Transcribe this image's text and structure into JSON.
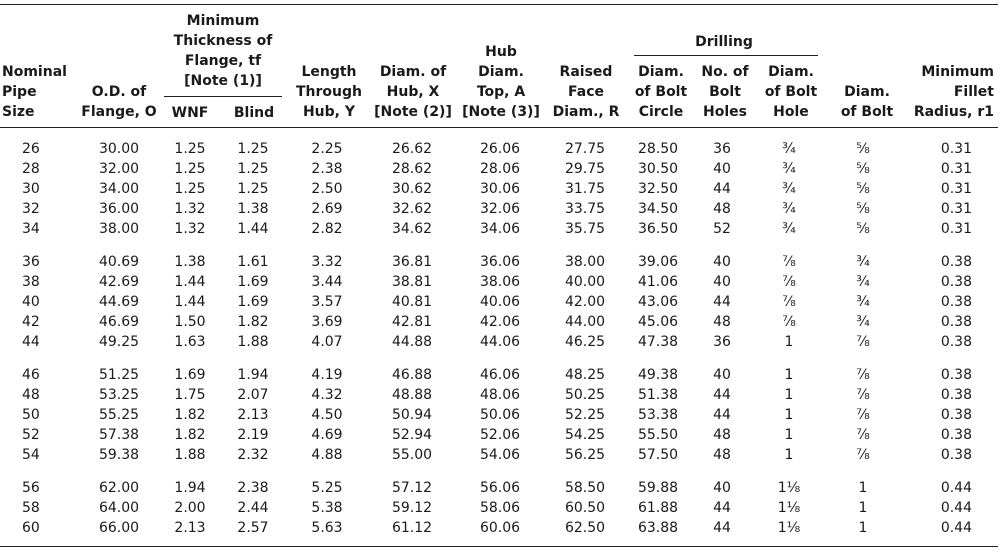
{
  "headers": {
    "nominal_pipe_size": [
      "Nominal",
      "Pipe",
      "Size"
    ],
    "od_flange": [
      "O.D. of",
      "Flange, O"
    ],
    "min_thickness_group": [
      "Minimum",
      "Thickness of",
      "Flange, tf",
      "[Note (1)]"
    ],
    "wnf": "WNF",
    "blind": "Blind",
    "length_through_hub": [
      "Length",
      "Through",
      "Hub, Y"
    ],
    "diam_hub": [
      "Diam. of",
      "Hub, X",
      "[Note (2)]"
    ],
    "hub_diam_top": [
      "Hub",
      "Diam.",
      "Top, A",
      "[Note (3)]"
    ],
    "raised_face": [
      "Raised",
      "Face",
      "Diam., R"
    ],
    "drilling": "Drilling",
    "diam_bolt_circle": [
      "Diam.",
      "of Bolt",
      "Circle"
    ],
    "no_bolt_holes": [
      "No. of",
      "Bolt",
      "Holes"
    ],
    "diam_bolt_hole": [
      "Diam.",
      "of Bolt",
      "Hole"
    ],
    "diam_bolt": [
      "Diam.",
      "of Bolt"
    ],
    "min_fillet_radius": [
      "Minimum",
      "Fillet",
      "Radius, r1"
    ]
  },
  "groups": [
    [
      [
        "26",
        "30.00",
        "1.25",
        "1.25",
        "2.25",
        "26.62",
        "26.06",
        "27.75",
        "28.50",
        "36",
        "¾",
        "⅝",
        "0.31"
      ],
      [
        "28",
        "32.00",
        "1.25",
        "1.25",
        "2.38",
        "28.62",
        "28.06",
        "29.75",
        "30.50",
        "40",
        "¾",
        "⅝",
        "0.31"
      ],
      [
        "30",
        "34.00",
        "1.25",
        "1.25",
        "2.50",
        "30.62",
        "30.06",
        "31.75",
        "32.50",
        "44",
        "¾",
        "⅝",
        "0.31"
      ],
      [
        "32",
        "36.00",
        "1.32",
        "1.38",
        "2.69",
        "32.62",
        "32.06",
        "33.75",
        "34.50",
        "48",
        "¾",
        "⅝",
        "0.31"
      ],
      [
        "34",
        "38.00",
        "1.32",
        "1.44",
        "2.82",
        "34.62",
        "34.06",
        "35.75",
        "36.50",
        "52",
        "¾",
        "⅝",
        "0.31"
      ]
    ],
    [
      [
        "36",
        "40.69",
        "1.38",
        "1.61",
        "3.32",
        "36.81",
        "36.06",
        "38.00",
        "39.06",
        "40",
        "⅞",
        "¾",
        "0.38"
      ],
      [
        "38",
        "42.69",
        "1.44",
        "1.69",
        "3.44",
        "38.81",
        "38.06",
        "40.00",
        "41.06",
        "40",
        "⅞",
        "¾",
        "0.38"
      ],
      [
        "40",
        "44.69",
        "1.44",
        "1.69",
        "3.57",
        "40.81",
        "40.06",
        "42.00",
        "43.06",
        "44",
        "⅞",
        "¾",
        "0.38"
      ],
      [
        "42",
        "46.69",
        "1.50",
        "1.82",
        "3.69",
        "42.81",
        "42.06",
        "44.00",
        "45.06",
        "48",
        "⅞",
        "¾",
        "0.38"
      ],
      [
        "44",
        "49.25",
        "1.63",
        "1.88",
        "4.07",
        "44.88",
        "44.06",
        "46.25",
        "47.38",
        "36",
        "1",
        "⅞",
        "0.38"
      ]
    ],
    [
      [
        "46",
        "51.25",
        "1.69",
        "1.94",
        "4.19",
        "46.88",
        "46.06",
        "48.25",
        "49.38",
        "40",
        "1",
        "⅞",
        "0.38"
      ],
      [
        "48",
        "53.25",
        "1.75",
        "2.07",
        "4.32",
        "48.88",
        "48.06",
        "50.25",
        "51.38",
        "44",
        "1",
        "⅞",
        "0.38"
      ],
      [
        "50",
        "55.25",
        "1.82",
        "2.13",
        "4.50",
        "50.94",
        "50.06",
        "52.25",
        "53.38",
        "44",
        "1",
        "⅞",
        "0.38"
      ],
      [
        "52",
        "57.38",
        "1.82",
        "2.19",
        "4.69",
        "52.94",
        "52.06",
        "54.25",
        "55.50",
        "48",
        "1",
        "⅞",
        "0.38"
      ],
      [
        "54",
        "59.38",
        "1.88",
        "2.32",
        "4.88",
        "55.00",
        "54.06",
        "56.25",
        "57.50",
        "48",
        "1",
        "⅞",
        "0.38"
      ]
    ],
    [
      [
        "56",
        "62.00",
        "1.94",
        "2.38",
        "5.25",
        "57.12",
        "56.06",
        "58.50",
        "59.88",
        "40",
        "1⅛",
        "1",
        "0.44"
      ],
      [
        "58",
        "64.00",
        "2.00",
        "2.44",
        "5.38",
        "59.12",
        "58.06",
        "60.50",
        "61.88",
        "44",
        "1⅛",
        "1",
        "0.44"
      ],
      [
        "60",
        "66.00",
        "2.13",
        "2.57",
        "5.63",
        "61.12",
        "60.06",
        "62.50",
        "63.88",
        "44",
        "1⅛",
        "1",
        "0.44"
      ]
    ]
  ]
}
